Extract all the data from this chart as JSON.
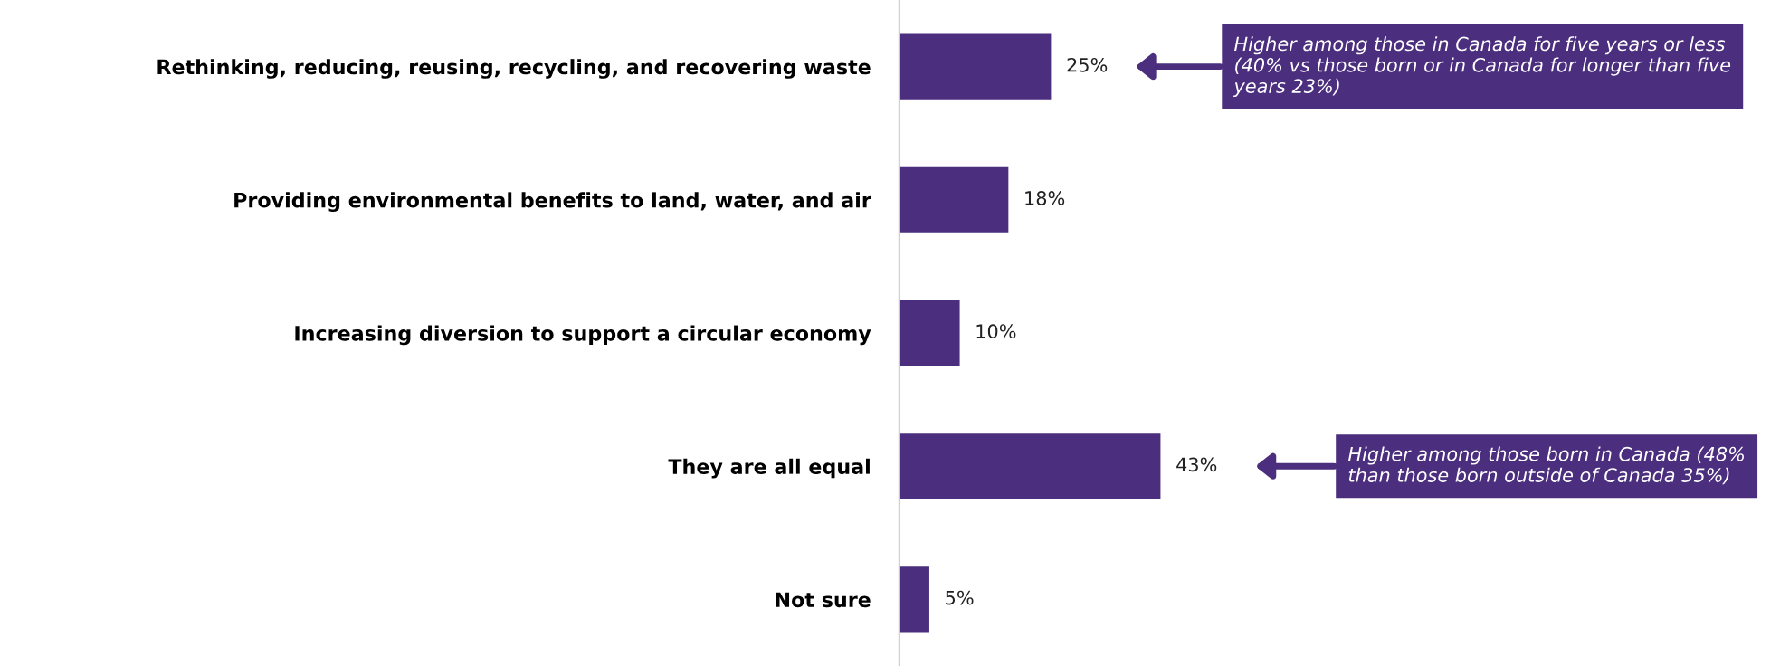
{
  "chart_data": {
    "type": "bar",
    "orientation": "horizontal",
    "categories": [
      "Rethinking, reducing, reusing, recycling, and recovering waste",
      "Providing environmental benefits to land, water, and air",
      "Increasing diversion to support a circular economy",
      "They are all equal",
      "Not sure"
    ],
    "values": [
      25,
      18,
      10,
      43,
      5
    ],
    "color": "#4b2e7e",
    "data_labels": true,
    "value_labels": [
      "25%",
      "18%",
      "10%",
      "43%",
      "5%"
    ],
    "grid": false,
    "tick_labels": "y",
    "annotations": [
      "Higher among those in Canada for five years or less (40% vs those born or in Canada for longer than five years 23%)",
      "Higher among those born in Canada (48% than those born outside of Canada 35%)"
    ]
  }
}
